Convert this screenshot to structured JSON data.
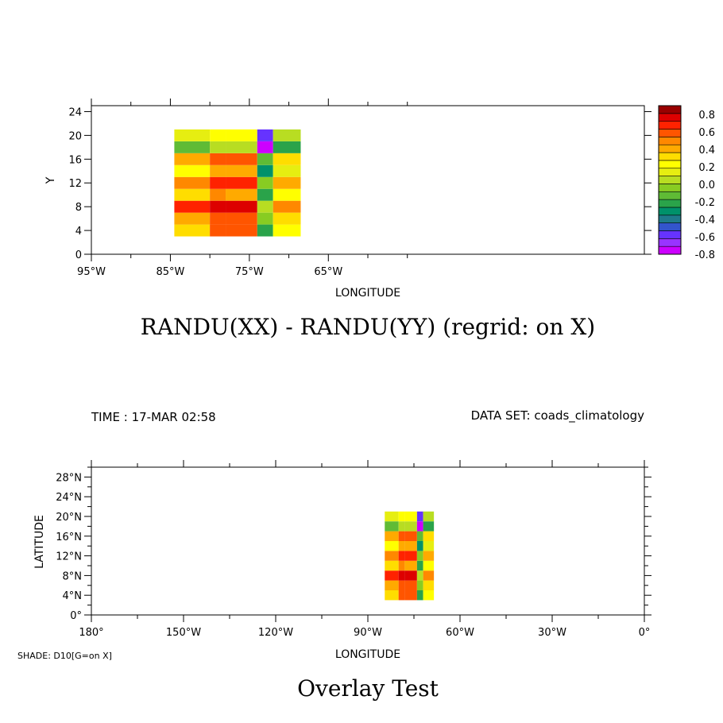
{
  "colors": {
    "palette": [
      "#cc00ff",
      "#9933ff",
      "#6633ff",
      "#3355cc",
      "#1e7a8a",
      "#00916a",
      "#2aa34a",
      "#5fbb35",
      "#88cc22",
      "#b8dd22",
      "#e6ee11",
      "#ffff00",
      "#ffdd00",
      "#ffaa00",
      "#ff8800",
      "#ff5500",
      "#ff2200",
      "#dd0000",
      "#990000"
    ],
    "frame": "#000000"
  },
  "chart_data": [
    {
      "type": "heatmap",
      "title": "RANDU(XX) - RANDU(YY) (regrid: on X)",
      "xlabel": "LONGITUDE",
      "ylabel": "Y",
      "xlim": [
        -95,
        -25
      ],
      "ylim": [
        0,
        25
      ],
      "x_ticks": [
        "95°W",
        "85°W",
        "75°W",
        "65°W"
      ],
      "y_ticks": [
        "0",
        "4",
        "8",
        "12",
        "16",
        "20",
        "24"
      ],
      "x_edges": [
        -84.5,
        -80,
        -78,
        -74,
        -72,
        -68.5
      ],
      "y_edges": [
        3,
        5,
        7,
        9,
        11,
        13,
        15,
        17,
        19,
        21
      ],
      "z": [
        [
          0.3,
          0.55,
          0.55,
          -0.2,
          0.25
        ],
        [
          0.45,
          0.6,
          0.6,
          0.0,
          0.3
        ],
        [
          0.65,
          0.8,
          0.8,
          0.05,
          0.5
        ],
        [
          0.35,
          0.5,
          0.45,
          -0.2,
          0.25
        ],
        [
          0.5,
          0.65,
          0.65,
          0.0,
          0.4
        ],
        [
          0.25,
          0.4,
          0.4,
          -0.35,
          0.15
        ],
        [
          0.4,
          0.6,
          0.55,
          -0.1,
          0.3
        ],
        [
          -0.1,
          0.05,
          0.05,
          -0.75,
          -0.2
        ],
        [
          0.15,
          0.25,
          0.25,
          -0.55,
          0.05
        ]
      ],
      "colorbar": {
        "min": -0.8,
        "max": 0.9,
        "step": 0.1,
        "labels": [
          "0.8",
          "0.6",
          "0.4",
          "0.2",
          "0.0",
          "-0.2",
          "-0.4",
          "-0.6",
          "-0.8"
        ]
      }
    },
    {
      "type": "heatmap",
      "title": "Overlay Test",
      "xlabel": "LONGITUDE",
      "ylabel": "LATITUDE",
      "xlim": [
        -180,
        0
      ],
      "ylim": [
        0,
        30
      ],
      "x_ticks": [
        "180°",
        "150°W",
        "120°W",
        "90°W",
        "60°W",
        "30°W",
        "0°"
      ],
      "y_ticks": [
        "0°",
        "4°N",
        "8°N",
        "12°N",
        "16°N",
        "20°N",
        "24°N",
        "28°N"
      ],
      "x_edges": [
        -84.5,
        -80,
        -78,
        -74,
        -72,
        -68.5
      ],
      "y_edges": [
        3,
        5,
        7,
        9,
        11,
        13,
        15,
        17,
        19,
        21
      ],
      "z": [
        [
          0.3,
          0.55,
          0.55,
          -0.2,
          0.25
        ],
        [
          0.45,
          0.6,
          0.6,
          0.0,
          0.3
        ],
        [
          0.65,
          0.8,
          0.8,
          0.05,
          0.5
        ],
        [
          0.35,
          0.5,
          0.45,
          -0.2,
          0.25
        ],
        [
          0.5,
          0.65,
          0.65,
          0.0,
          0.4
        ],
        [
          0.25,
          0.4,
          0.4,
          -0.35,
          0.15
        ],
        [
          0.4,
          0.6,
          0.55,
          -0.1,
          0.3
        ],
        [
          -0.1,
          0.05,
          0.05,
          -0.75,
          -0.2
        ],
        [
          0.15,
          0.25,
          0.25,
          -0.55,
          0.05
        ]
      ]
    }
  ],
  "info": {
    "time": "TIME : 17-MAR 02:58",
    "dataset": "DATA SET: coads_climatology",
    "shade_note": "SHADE: D10[G=on X]"
  }
}
